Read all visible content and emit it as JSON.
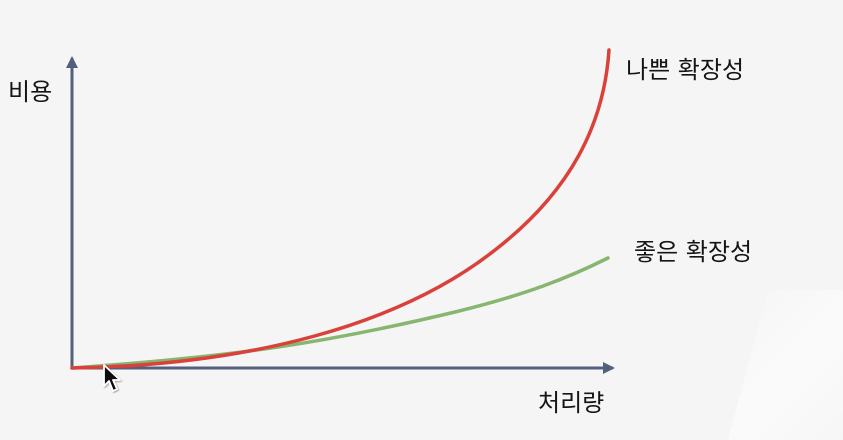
{
  "diagram": {
    "y_axis_label": "비용",
    "x_axis_label": "처리량",
    "curves": [
      {
        "key": "bad",
        "label": "나쁜 확장성",
        "color": "#d9413a"
      },
      {
        "key": "good",
        "label": "좋은 확장성",
        "color": "#86b66f"
      }
    ],
    "axis_color": "#53607c"
  }
}
